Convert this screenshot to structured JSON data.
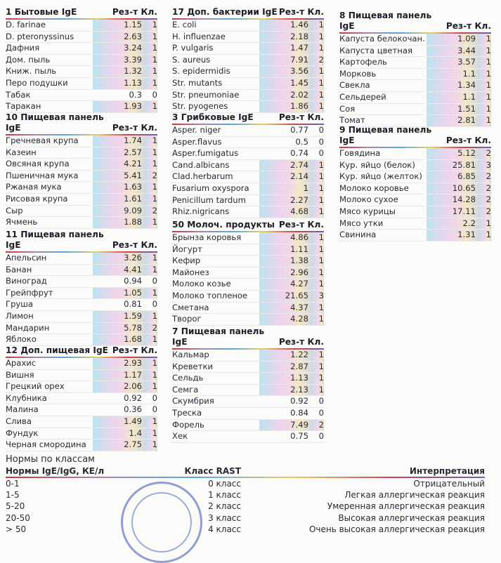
{
  "col_headers": {
    "result": "Рез-т",
    "class": "Кл."
  },
  "panels": [
    {
      "title": "1 Бытовые IgE",
      "rows": [
        [
          "D. farinae",
          "1.15",
          "1"
        ],
        [
          "D. pteronyssinus",
          "2.63",
          "1"
        ],
        [
          "Дафния",
          "3.24",
          "1"
        ],
        [
          "Дом. пыль",
          "3.39",
          "1"
        ],
        [
          "Книж. пыль",
          "1.32",
          "1"
        ],
        [
          "Перо подушки",
          "1.13",
          "1"
        ],
        [
          "Табак",
          "0.3",
          "0"
        ],
        [
          "Таракан",
          "1.93",
          "1"
        ]
      ]
    },
    {
      "title": "10 Пищевая панель IgE",
      "rows": [
        [
          "Гречневая крупа",
          "1.74",
          "1"
        ],
        [
          "Казеин",
          "2.57",
          "1"
        ],
        [
          "Овсяная крупа",
          "4.21",
          "1"
        ],
        [
          "Пшеничная мука",
          "5.41",
          "2"
        ],
        [
          "Ржаная мука",
          "1.63",
          "1"
        ],
        [
          "Рисовая крупа",
          "1.61",
          "1"
        ],
        [
          "Сыр",
          "9.09",
          "2"
        ],
        [
          "Ячмень",
          "1.88",
          "1"
        ]
      ]
    },
    {
      "title": "11 Пищевая панель IgE",
      "rows": [
        [
          "Апельсин",
          "3.26",
          "1"
        ],
        [
          "Банан",
          "4.41",
          "1"
        ],
        [
          "Виноград",
          "0.94",
          "0"
        ],
        [
          "Грейпфрут",
          "1.05",
          "1"
        ],
        [
          "Груша",
          "0.81",
          "0"
        ],
        [
          "Лимон",
          "1.59",
          "1"
        ],
        [
          "Мандарин",
          "5.78",
          "2"
        ],
        [
          "Яблоко",
          "1.68",
          "1"
        ]
      ]
    },
    {
      "title": "12 Доп. пищевая IgE",
      "rows": [
        [
          "Арахис",
          "2.93",
          "1"
        ],
        [
          "Вишня",
          "1.17",
          "1"
        ],
        [
          "Грецкий орех",
          "2.06",
          "1"
        ],
        [
          "Клубника",
          "0.92",
          "0"
        ],
        [
          "Малина",
          "0.36",
          "0"
        ],
        [
          "Слива",
          "1.49",
          "1"
        ],
        [
          "Фундук",
          "1.4",
          "1"
        ],
        [
          "Черная смородина",
          "2.75",
          "1"
        ]
      ]
    },
    {
      "title": "17 Доп. бактерии IgE",
      "rows": [
        [
          "E. coli",
          "1.46",
          "1"
        ],
        [
          "H. influenzae",
          "2.18",
          "1"
        ],
        [
          "P. vulgaris",
          "1.47",
          "1"
        ],
        [
          "S. aureus",
          "7.91",
          "2"
        ],
        [
          "S. epidermidis",
          "3.56",
          "1"
        ],
        [
          "Str. mutants",
          "1.45",
          "1"
        ],
        [
          "Str. pneumoniae",
          "2.02",
          "1"
        ],
        [
          "Str. pyogenes",
          "1.86",
          "1"
        ]
      ]
    },
    {
      "title": "3 Грибковые IgE",
      "rows": [
        [
          "Asper. niger",
          "0.77",
          "0"
        ],
        [
          "Asper.flavus",
          "0.5",
          "0"
        ],
        [
          "Asper.fumigatus",
          "0.74",
          "0"
        ],
        [
          "Cand.albicans",
          "2.74",
          "1"
        ],
        [
          "Clad.herbarum",
          "2.14",
          "1"
        ],
        [
          "Fusarium oxyspora",
          "1",
          "1"
        ],
        [
          "Penicillum tardum",
          "2.27",
          "1"
        ],
        [
          "Rhiz.nigricans",
          "4.68",
          "1"
        ]
      ]
    },
    {
      "title": "50 Молоч. продукты",
      "rows": [
        [
          "Брынза коровья",
          "4.86",
          "1"
        ],
        [
          "Йогурт",
          "1.11",
          "1"
        ],
        [
          "Кефир",
          "1.38",
          "1"
        ],
        [
          "Майонез",
          "2.96",
          "1"
        ],
        [
          "Молоко козье",
          "4.27",
          "1"
        ],
        [
          "Молоко топленое",
          "21.65",
          "3"
        ],
        [
          "Сметана",
          "4.37",
          "1"
        ],
        [
          "Творог",
          "4.28",
          "1"
        ]
      ]
    },
    {
      "title": "7 Пищевая панель IgE",
      "rows": [
        [
          "Кальмар",
          "1.22",
          "1"
        ],
        [
          "Креветки",
          "2.87",
          "1"
        ],
        [
          "Сельдь",
          "1.13",
          "1"
        ],
        [
          "Семга",
          "2.13",
          "1"
        ],
        [
          "Скумбрия",
          "0.92",
          "0"
        ],
        [
          "Треска",
          "0.84",
          "0"
        ],
        [
          "Форель",
          "7.49",
          "2"
        ],
        [
          "Хек",
          "0.75",
          "0"
        ]
      ]
    },
    {
      "title": "8 Пищевая панель IgE",
      "rows": [
        [
          "Капуста белокочан.",
          "1.09",
          "1"
        ],
        [
          "Капуста цветная",
          "3.44",
          "1"
        ],
        [
          "Картофель",
          "3.57",
          "1"
        ],
        [
          "Морковь",
          "1.1",
          "1"
        ],
        [
          "Свекла",
          "1.34",
          "1"
        ],
        [
          "Сельдерей",
          "1.1",
          "1"
        ],
        [
          "Соя",
          "1.51",
          "1"
        ],
        [
          "Томат",
          "2.81",
          "1"
        ]
      ]
    },
    {
      "title": "9 Пищевая панель IgE",
      "rows": [
        [
          "Говядина",
          "5.12",
          "2"
        ],
        [
          "Кур. яйцо (белок)",
          "25.81",
          "3"
        ],
        [
          "Кур. яйцо (желток)",
          "6.85",
          "2"
        ],
        [
          "Молоко коровье",
          "10.65",
          "2"
        ],
        [
          "Молоко сухое",
          "14.28",
          "2"
        ],
        [
          "Мясо курицы",
          "17.11",
          "2"
        ],
        [
          "Мясо утки",
          "2.2",
          "1"
        ],
        [
          "Свинина",
          "1.31",
          "1"
        ]
      ]
    }
  ],
  "norms": {
    "title": "Нормы по классам",
    "headers": [
      "Нормы IgE/IgG, КЕ/л",
      "Класс RAST",
      "Интерпретация"
    ],
    "rows": [
      [
        "0-1",
        "0 класс",
        "Отрицательный"
      ],
      [
        "1-5",
        "1 класс",
        "Легкая аллергическая реакция"
      ],
      [
        "5-20",
        "2 класс",
        "Умеренная аллергическая реакция"
      ],
      [
        "20-50",
        "3 класс",
        "Высокая аллергическая реакция"
      ],
      [
        "> 50",
        "4 класс",
        "Очень высокая аллергическая реакция"
      ]
    ]
  }
}
